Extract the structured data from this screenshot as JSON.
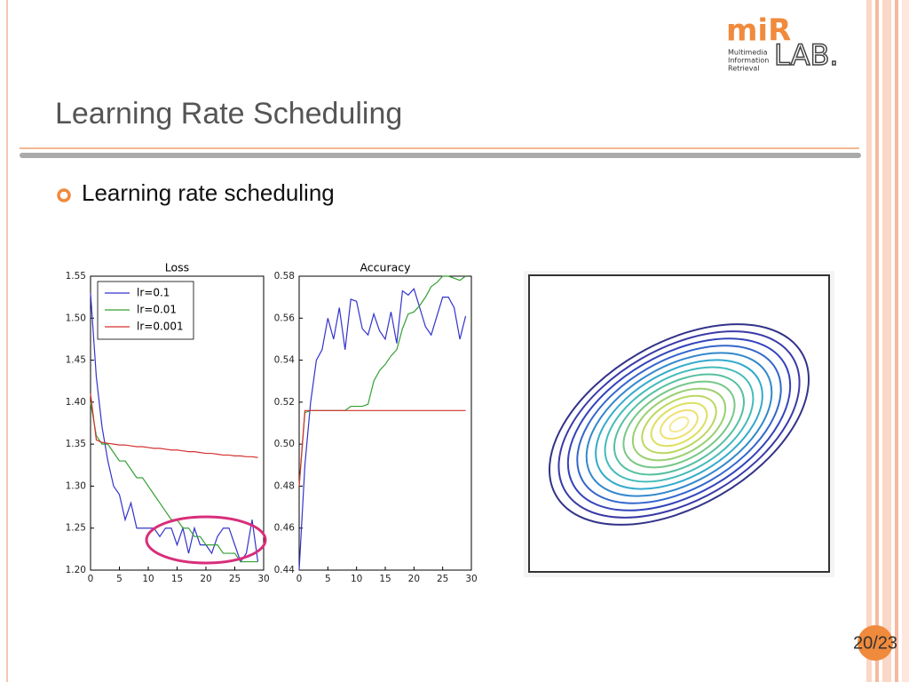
{
  "slide": {
    "title": "Learning Rate Scheduling",
    "bullet": "Learning rate scheduling",
    "page": "20/23",
    "logo": {
      "mark": "miR",
      "lab": "LAB.",
      "lines": [
        "Multimedia",
        "Information",
        "Retrieval"
      ]
    }
  },
  "chart_data": [
    {
      "type": "line",
      "title": "Loss",
      "legend": "upper left",
      "x": [
        0,
        1,
        2,
        3,
        4,
        5,
        6,
        7,
        8,
        9,
        10,
        11,
        12,
        13,
        14,
        15,
        16,
        17,
        18,
        19,
        20,
        21,
        22,
        23,
        24,
        25,
        26,
        27,
        28,
        29
      ],
      "xlim": [
        0,
        30
      ],
      "xticks": [
        0,
        5,
        10,
        15,
        20,
        25,
        30
      ],
      "ylim": [
        1.2,
        1.55
      ],
      "yticks": [
        {
          "value": 1.2,
          "label": "1.20"
        },
        1.25,
        {
          "value": 1.3,
          "label": "1.30"
        },
        1.35,
        {
          "value": 1.4,
          "label": "1.40"
        },
        1.45,
        {
          "value": 1.5,
          "label": "1.50"
        },
        1.55
      ],
      "series": [
        {
          "name": "lr=0.1",
          "color": "#3333cc",
          "values": [
            1.53,
            1.43,
            1.37,
            1.33,
            1.3,
            1.29,
            1.26,
            1.28,
            1.25,
            1.25,
            1.25,
            1.25,
            1.24,
            1.25,
            1.25,
            1.23,
            1.25,
            1.22,
            1.25,
            1.23,
            1.23,
            1.22,
            1.24,
            1.25,
            1.25,
            1.23,
            1.21,
            1.22,
            1.26,
            1.21
          ]
        },
        {
          "name": "lr=0.01",
          "color": "#33a033",
          "values": [
            1.4,
            1.36,
            1.35,
            1.35,
            1.34,
            1.33,
            1.33,
            1.32,
            1.31,
            1.31,
            1.3,
            1.29,
            1.28,
            1.27,
            1.26,
            1.26,
            1.25,
            1.25,
            1.24,
            1.24,
            1.23,
            1.23,
            1.23,
            1.22,
            1.22,
            1.22,
            1.21,
            1.21,
            1.21,
            1.21
          ]
        },
        {
          "name": "lr=0.001",
          "color": "#d63030",
          "values": [
            1.41,
            1.355,
            1.352,
            1.351,
            1.35,
            1.349,
            1.349,
            1.348,
            1.347,
            1.347,
            1.346,
            1.345,
            1.345,
            1.344,
            1.343,
            1.343,
            1.342,
            1.341,
            1.341,
            1.34,
            1.339,
            1.339,
            1.338,
            1.337,
            1.337,
            1.336,
            1.336,
            1.335,
            1.335,
            1.334
          ]
        }
      ]
    },
    {
      "type": "line",
      "title": "Accuracy",
      "x": [
        0,
        1,
        2,
        3,
        4,
        5,
        6,
        7,
        8,
        9,
        10,
        11,
        12,
        13,
        14,
        15,
        16,
        17,
        18,
        19,
        20,
        21,
        22,
        23,
        24,
        25,
        26,
        27,
        28,
        29
      ],
      "xlim": [
        0,
        30
      ],
      "xticks": [
        0,
        5,
        10,
        15,
        20,
        25,
        30
      ],
      "ylim": [
        0.44,
        0.58
      ],
      "yticks": [
        0.44,
        0.46,
        0.48,
        {
          "value": 0.5,
          "label": "0.50"
        },
        0.52,
        0.54,
        0.56,
        0.58
      ],
      "series": [
        {
          "color": "#3333cc",
          "values": [
            0.44,
            0.49,
            0.52,
            0.54,
            0.545,
            0.56,
            0.55,
            0.565,
            0.545,
            0.569,
            0.568,
            0.555,
            0.552,
            0.562,
            0.554,
            0.55,
            0.563,
            0.548,
            0.573,
            0.571,
            0.574,
            0.565,
            0.556,
            0.552,
            0.561,
            0.57,
            0.57,
            0.565,
            0.55,
            0.561
          ]
        },
        {
          "color": "#33a033",
          "values": [
            0.48,
            0.515,
            0.516,
            0.516,
            0.516,
            0.516,
            0.516,
            0.516,
            0.516,
            0.518,
            0.518,
            0.518,
            0.519,
            0.53,
            0.535,
            0.538,
            0.542,
            0.545,
            0.555,
            0.562,
            0.563,
            0.566,
            0.57,
            0.575,
            0.577,
            0.58,
            0.58,
            0.579,
            0.578,
            0.58
          ]
        },
        {
          "color": "#d63030",
          "values": [
            0.48,
            0.516,
            0.516,
            0.516,
            0.516,
            0.516,
            0.516,
            0.516,
            0.516,
            0.516,
            0.516,
            0.516,
            0.516,
            0.516,
            0.516,
            0.516,
            0.516,
            0.516,
            0.516,
            0.516,
            0.516,
            0.516,
            0.516,
            0.516,
            0.516,
            0.516,
            0.516,
            0.516,
            0.516,
            0.516
          ]
        }
      ]
    }
  ]
}
